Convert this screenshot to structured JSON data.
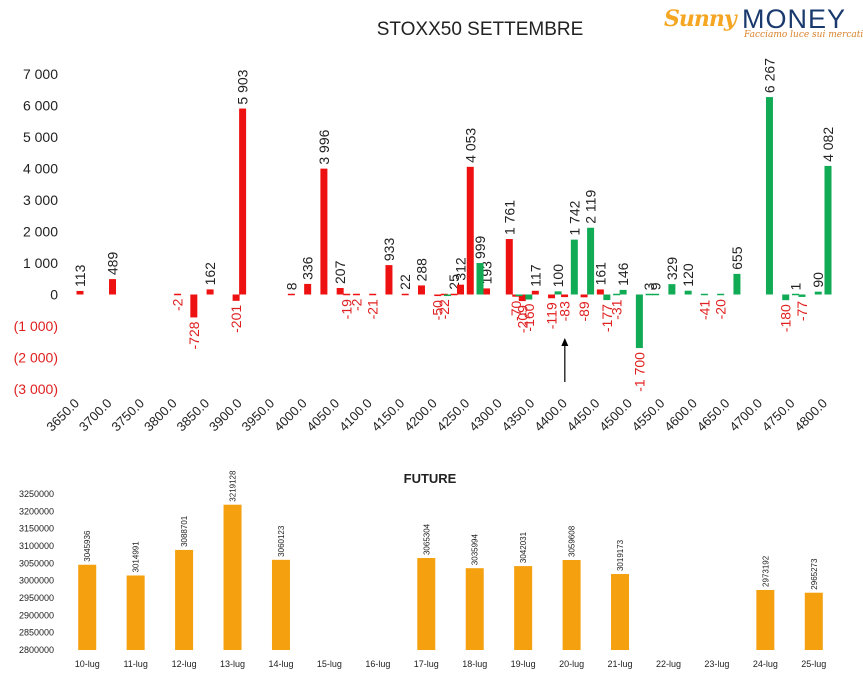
{
  "logo": {
    "brand_sunny": "Sunny",
    "brand_money": "MONEY",
    "tagline": "Facciamo luce sui mercati"
  },
  "colors": {
    "call": "#ee1111",
    "put": "#11aa55",
    "future": "#f5a00f",
    "negative_label": "#e02020",
    "text": "#222222"
  },
  "chart_data": [
    {
      "type": "bar",
      "title": "STOXX50 SETTEMBRE",
      "x_tick_labels": [
        "3650.0",
        "3700.0",
        "3750.0",
        "3800.0",
        "3850.0",
        "3900.0",
        "3950.0",
        "4000.0",
        "4050.0",
        "4100.0",
        "4150.0",
        "4200.0",
        "4250.0",
        "4300.0",
        "4350.0",
        "4400.0",
        "4450.0",
        "4500.0",
        "4550.0",
        "4600.0",
        "4650.0",
        "4700.0",
        "4750.0",
        "4800.0"
      ],
      "y_tick_labels": [
        "7 000",
        "6 000",
        "5 000",
        "4 000",
        "3 000",
        "2 000",
        "1 000",
        "0",
        "(1 000)",
        "(2 000)",
        "(3 000)"
      ],
      "ylim": [
        -3000,
        7000
      ],
      "grid": false,
      "series": [
        {
          "color": "#ee1111",
          "points": [
            {
              "x": 3650,
              "value": 113,
              "label": "113"
            },
            {
              "x": 3700,
              "value": 489,
              "label": "489"
            },
            {
              "x": 3800,
              "value": -2,
              "label": "-2"
            },
            {
              "x": 3825,
              "value": -728,
              "label": "-728"
            },
            {
              "x": 3850,
              "value": 162,
              "label": "162"
            },
            {
              "x": 3890,
              "value": -201,
              "label": "-201"
            },
            {
              "x": 3900,
              "value": 5903,
              "label": "5 903"
            },
            {
              "x": 3975,
              "value": 8,
              "label": "8"
            },
            {
              "x": 4000,
              "value": 336,
              "label": "336"
            },
            {
              "x": 4025,
              "value": 3996,
              "label": "3 996"
            },
            {
              "x": 4050,
              "value": 207,
              "label": "207"
            },
            {
              "x": 4060,
              "value": -19,
              "label": "-19"
            },
            {
              "x": 4075,
              "value": -2,
              "label": "-2"
            },
            {
              "x": 4100,
              "value": -21,
              "label": "-21"
            },
            {
              "x": 4125,
              "value": 933,
              "label": "933"
            },
            {
              "x": 4150,
              "value": 22,
              "label": "22"
            },
            {
              "x": 4175,
              "value": 288,
              "label": "288"
            },
            {
              "x": 4200,
              "value": -50,
              "label": "-50"
            },
            {
              "x": 4210,
              "value": -22,
              "label": "-22"
            },
            {
              "x": 4225,
              "value": 25,
              "label": "25"
            },
            {
              "x": 4235,
              "value": 312,
              "label": "312"
            },
            {
              "x": 4250,
              "value": 4053,
              "label": "4 053"
            },
            {
              "x": 4275,
              "value": 193,
              "label": "193"
            },
            {
              "x": 4310,
              "value": 1761,
              "label": "1 761"
            },
            {
              "x": 4320,
              "value": -70,
              "label": "-70"
            },
            {
              "x": 4330,
              "value": -209,
              "label": "-209"
            },
            {
              "x": 4350,
              "value": 117,
              "label": "117"
            },
            {
              "x": 4375,
              "value": -119,
              "label": "-119"
            },
            {
              "x": 4395,
              "value": -83,
              "label": "-83"
            },
            {
              "x": 4425,
              "value": -89,
              "label": "-89"
            },
            {
              "x": 4450,
              "value": 161,
              "label": "161"
            }
          ]
        },
        {
          "color": "#11aa55",
          "points": [
            {
              "x": 4215,
              "value": -50,
              "label": ""
            },
            {
              "x": 4265,
              "value": 999,
              "label": "999"
            },
            {
              "x": 4325,
              "value": -50,
              "label": ""
            },
            {
              "x": 4340,
              "value": -160,
              "label": "-160"
            },
            {
              "x": 4385,
              "value": 100,
              "label": "100"
            },
            {
              "x": 4410,
              "value": 1742,
              "label": "1 742"
            },
            {
              "x": 4435,
              "value": 2119,
              "label": "2 119"
            },
            {
              "x": 4460,
              "value": -177,
              "label": "-177"
            },
            {
              "x": 4475,
              "value": -31,
              "label": "-31"
            },
            {
              "x": 4485,
              "value": 146,
              "label": "146"
            },
            {
              "x": 4510,
              "value": -1700,
              "label": "-1 700"
            },
            {
              "x": 4525,
              "value": 3,
              "label": "3"
            },
            {
              "x": 4535,
              "value": 9,
              "label": "9"
            },
            {
              "x": 4560,
              "value": 329,
              "label": "329"
            },
            {
              "x": 4585,
              "value": 120,
              "label": "120"
            },
            {
              "x": 4610,
              "value": -41,
              "label": "-41"
            },
            {
              "x": 4635,
              "value": -20,
              "label": "-20"
            },
            {
              "x": 4660,
              "value": 655,
              "label": "655"
            },
            {
              "x": 4710,
              "value": 6267,
              "label": "6 267"
            },
            {
              "x": 4735,
              "value": -180,
              "label": "-180"
            },
            {
              "x": 4750,
              "value": 1,
              "label": "1"
            },
            {
              "x": 4760,
              "value": -77,
              "label": "-77"
            },
            {
              "x": 4785,
              "value": 90,
              "label": "90"
            },
            {
              "x": 4800,
              "value": 4082,
              "label": "4 082"
            }
          ]
        }
      ],
      "annotation": {
        "type": "arrow",
        "x": 4400,
        "label": ""
      }
    },
    {
      "type": "bar",
      "title": "FUTURE",
      "categories": [
        "10-lug",
        "11-lug",
        "12-lug",
        "13-lug",
        "14-lug",
        "15-lug",
        "16-lug",
        "17-lug",
        "18-lug",
        "19-lug",
        "20-lug",
        "21-lug",
        "22-lug",
        "23-lug",
        "24-lug",
        "25-lug"
      ],
      "values": [
        3045936,
        3014991,
        3088701,
        3219128,
        3060123,
        null,
        null,
        3065304,
        3035994,
        3042031,
        3059608,
        3019173,
        null,
        null,
        2973192,
        2965273
      ],
      "value_labels": [
        "3045936",
        "3014991",
        "3088701",
        "3219128",
        "3060123",
        "",
        "",
        "3065304",
        "3035994",
        "3042031",
        "3059608",
        "3019173",
        "",
        "",
        "2973192",
        "2965273"
      ],
      "y_tick_labels": [
        "3250000",
        "3200000",
        "3150000",
        "3100000",
        "3050000",
        "3000000",
        "2950000",
        "2900000",
        "2850000",
        "2800000"
      ],
      "ylim": [
        2800000,
        3250000
      ],
      "grid": false,
      "color": "#f5a00f"
    }
  ]
}
